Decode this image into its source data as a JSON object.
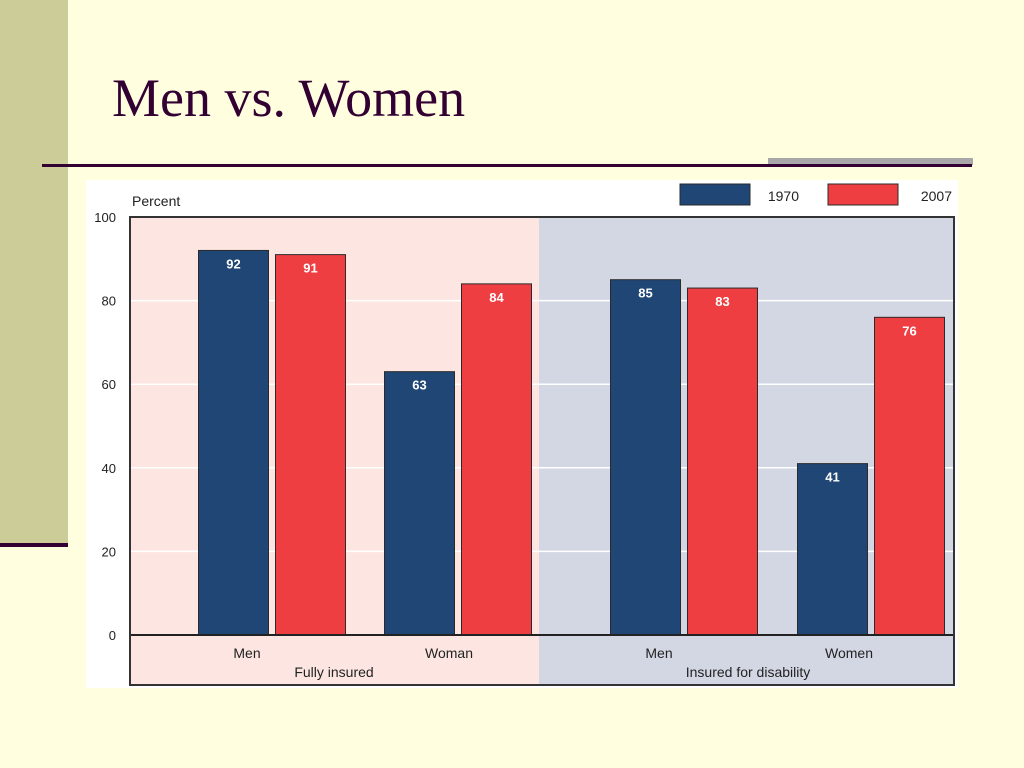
{
  "slide": {
    "title": "Men vs. Women"
  },
  "colors": {
    "background": "#ffffe0",
    "accent_band": "#cccc99",
    "title_text": "#330033",
    "series_1970": "#1f4675",
    "series_2007": "#ef3e42",
    "panel_fully_insured": "#fde6e1",
    "panel_disability": "#d3d7e4"
  },
  "chart_data": {
    "type": "bar",
    "ylabel": "Percent",
    "ylim": [
      0,
      100
    ],
    "yticks": [
      "0",
      "20",
      "40",
      "60",
      "80",
      "100"
    ],
    "grid": true,
    "legend_position": "top-right",
    "groups": [
      {
        "label": "Fully insured",
        "categories": [
          "Men",
          "Woman"
        ]
      },
      {
        "label": "Insured for disability",
        "categories": [
          "Men",
          "Women"
        ]
      }
    ],
    "categories": [
      "Men",
      "Woman",
      "Men",
      "Women"
    ],
    "series": [
      {
        "name": "1970",
        "values": [
          92,
          63,
          85,
          41
        ]
      },
      {
        "name": "2007",
        "values": [
          91,
          84,
          83,
          76
        ]
      }
    ]
  }
}
